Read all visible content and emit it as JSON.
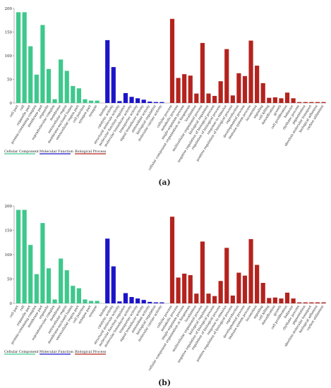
{
  "panel_labels": [
    "(a)",
    "(b)"
  ],
  "colors": {
    "cellular_component": "#3ec88c",
    "molecular_function": "#1c14c8",
    "biological_process": "#b4231e",
    "axis": "#888888",
    "text": "#222222"
  },
  "legend": [
    {
      "name": "Cellular Component",
      "color": "#3ec88c"
    },
    {
      "name": "Molecular Function",
      "color": "#1c14c8"
    },
    {
      "name": "Biological Process",
      "color": "#b4231e"
    }
  ],
  "chart_data": [
    {
      "type": "bar",
      "panel": "(a)",
      "ylim": [
        0,
        200
      ],
      "yticks": [
        0,
        50,
        100,
        150,
        200
      ],
      "grid": false,
      "legend_position": "bottom-left",
      "series": [
        {
          "name": "Cellular Component",
          "categories": [
            "cell part",
            "cell",
            "organelle part",
            "protein-containing complex",
            "membrane part",
            "organelle",
            "supramolecular complex",
            "membrane",
            "extracellular region",
            "membrane-enclosed lumen",
            "extracellular region part",
            "cell junction",
            "synapse part",
            "synapse"
          ],
          "values": [
            192,
            192,
            120,
            60,
            165,
            72,
            8,
            92,
            68,
            36,
            31,
            8,
            5,
            5
          ]
        },
        {
          "name": "Molecular Function",
          "categories": [
            "binding",
            "catalytic activity",
            "structural molecule activity",
            "molecular function regulator",
            "molecular transducer activity",
            "transporter activity",
            "signal transducer activity",
            "antioxidant activity",
            "biological regulation",
            "molecular carrier activity"
          ],
          "values": [
            133,
            76,
            4,
            21,
            13,
            10,
            7,
            3,
            2,
            2
          ]
        },
        {
          "name": "Biological Process",
          "categories": [
            "cellular process",
            "metabolic process",
            "single-organism process",
            "cellular component organization or biogenesis",
            "localization",
            "multicellular organismal process",
            "biological regulation",
            "negative regulation of biological process",
            "regulation of biological process",
            "response to stimulus",
            "positive regulation of biological process",
            "reproduction",
            "developmental process",
            "immune system process",
            "locomotion",
            "signaling",
            "cell killing",
            "detoxification",
            "growth",
            "cell proliferation",
            "behavior",
            "rhythmic process",
            "pigmentation",
            "absolute molecular transport",
            "biological adhesion",
            "carbon utilization"
          ],
          "values": [
            178,
            53,
            61,
            58,
            20,
            127,
            20,
            15,
            46,
            114,
            16,
            63,
            57,
            132,
            79,
            42,
            11,
            12,
            10,
            22,
            10,
            2,
            2,
            2,
            2,
            2
          ]
        }
      ]
    },
    {
      "type": "bar",
      "panel": "(b)",
      "ylim": [
        0,
        200
      ],
      "yticks": [
        0,
        50,
        100,
        150,
        200
      ],
      "grid": false,
      "legend_position": "bottom-left",
      "series": [
        {
          "name": "Cellular Component",
          "categories": [
            "cell part",
            "cell",
            "organelle part",
            "protein-containing complex",
            "membrane part",
            "organelle",
            "supramolecular complex",
            "membrane",
            "extracellular region",
            "membrane-enclosed lumen",
            "extracellular region part",
            "cell junction",
            "synapse part",
            "synapse"
          ],
          "values": [
            192,
            192,
            120,
            60,
            165,
            72,
            8,
            92,
            68,
            36,
            31,
            8,
            5,
            5
          ]
        },
        {
          "name": "Molecular Function",
          "categories": [
            "binding",
            "catalytic activity",
            "structural molecule activity",
            "molecular function regulator",
            "molecular transducer activity",
            "transporter activity",
            "signal transducer activity",
            "antioxidant activity",
            "biological regulation",
            "molecular carrier activity"
          ],
          "values": [
            133,
            76,
            4,
            21,
            13,
            10,
            7,
            3,
            2,
            2
          ]
        },
        {
          "name": "Biological Process",
          "categories": [
            "cellular process",
            "metabolic process",
            "single-organism process",
            "cellular component organization or biogenesis",
            "localization",
            "multicellular organismal process",
            "biological regulation",
            "negative regulation of biological process",
            "regulation of biological process",
            "response to stimulus",
            "positive regulation of biological process",
            "reproduction",
            "developmental process",
            "immune system process",
            "locomotion",
            "signaling",
            "cell killing",
            "detoxification",
            "growth",
            "cell proliferation",
            "behavior",
            "rhythmic process",
            "pigmentation",
            "absolute molecular transport",
            "biological adhesion",
            "carbon utilization"
          ],
          "values": [
            178,
            53,
            61,
            58,
            20,
            127,
            20,
            15,
            46,
            114,
            16,
            63,
            57,
            132,
            79,
            42,
            11,
            12,
            10,
            22,
            10,
            2,
            2,
            2,
            2,
            2
          ]
        }
      ]
    }
  ]
}
